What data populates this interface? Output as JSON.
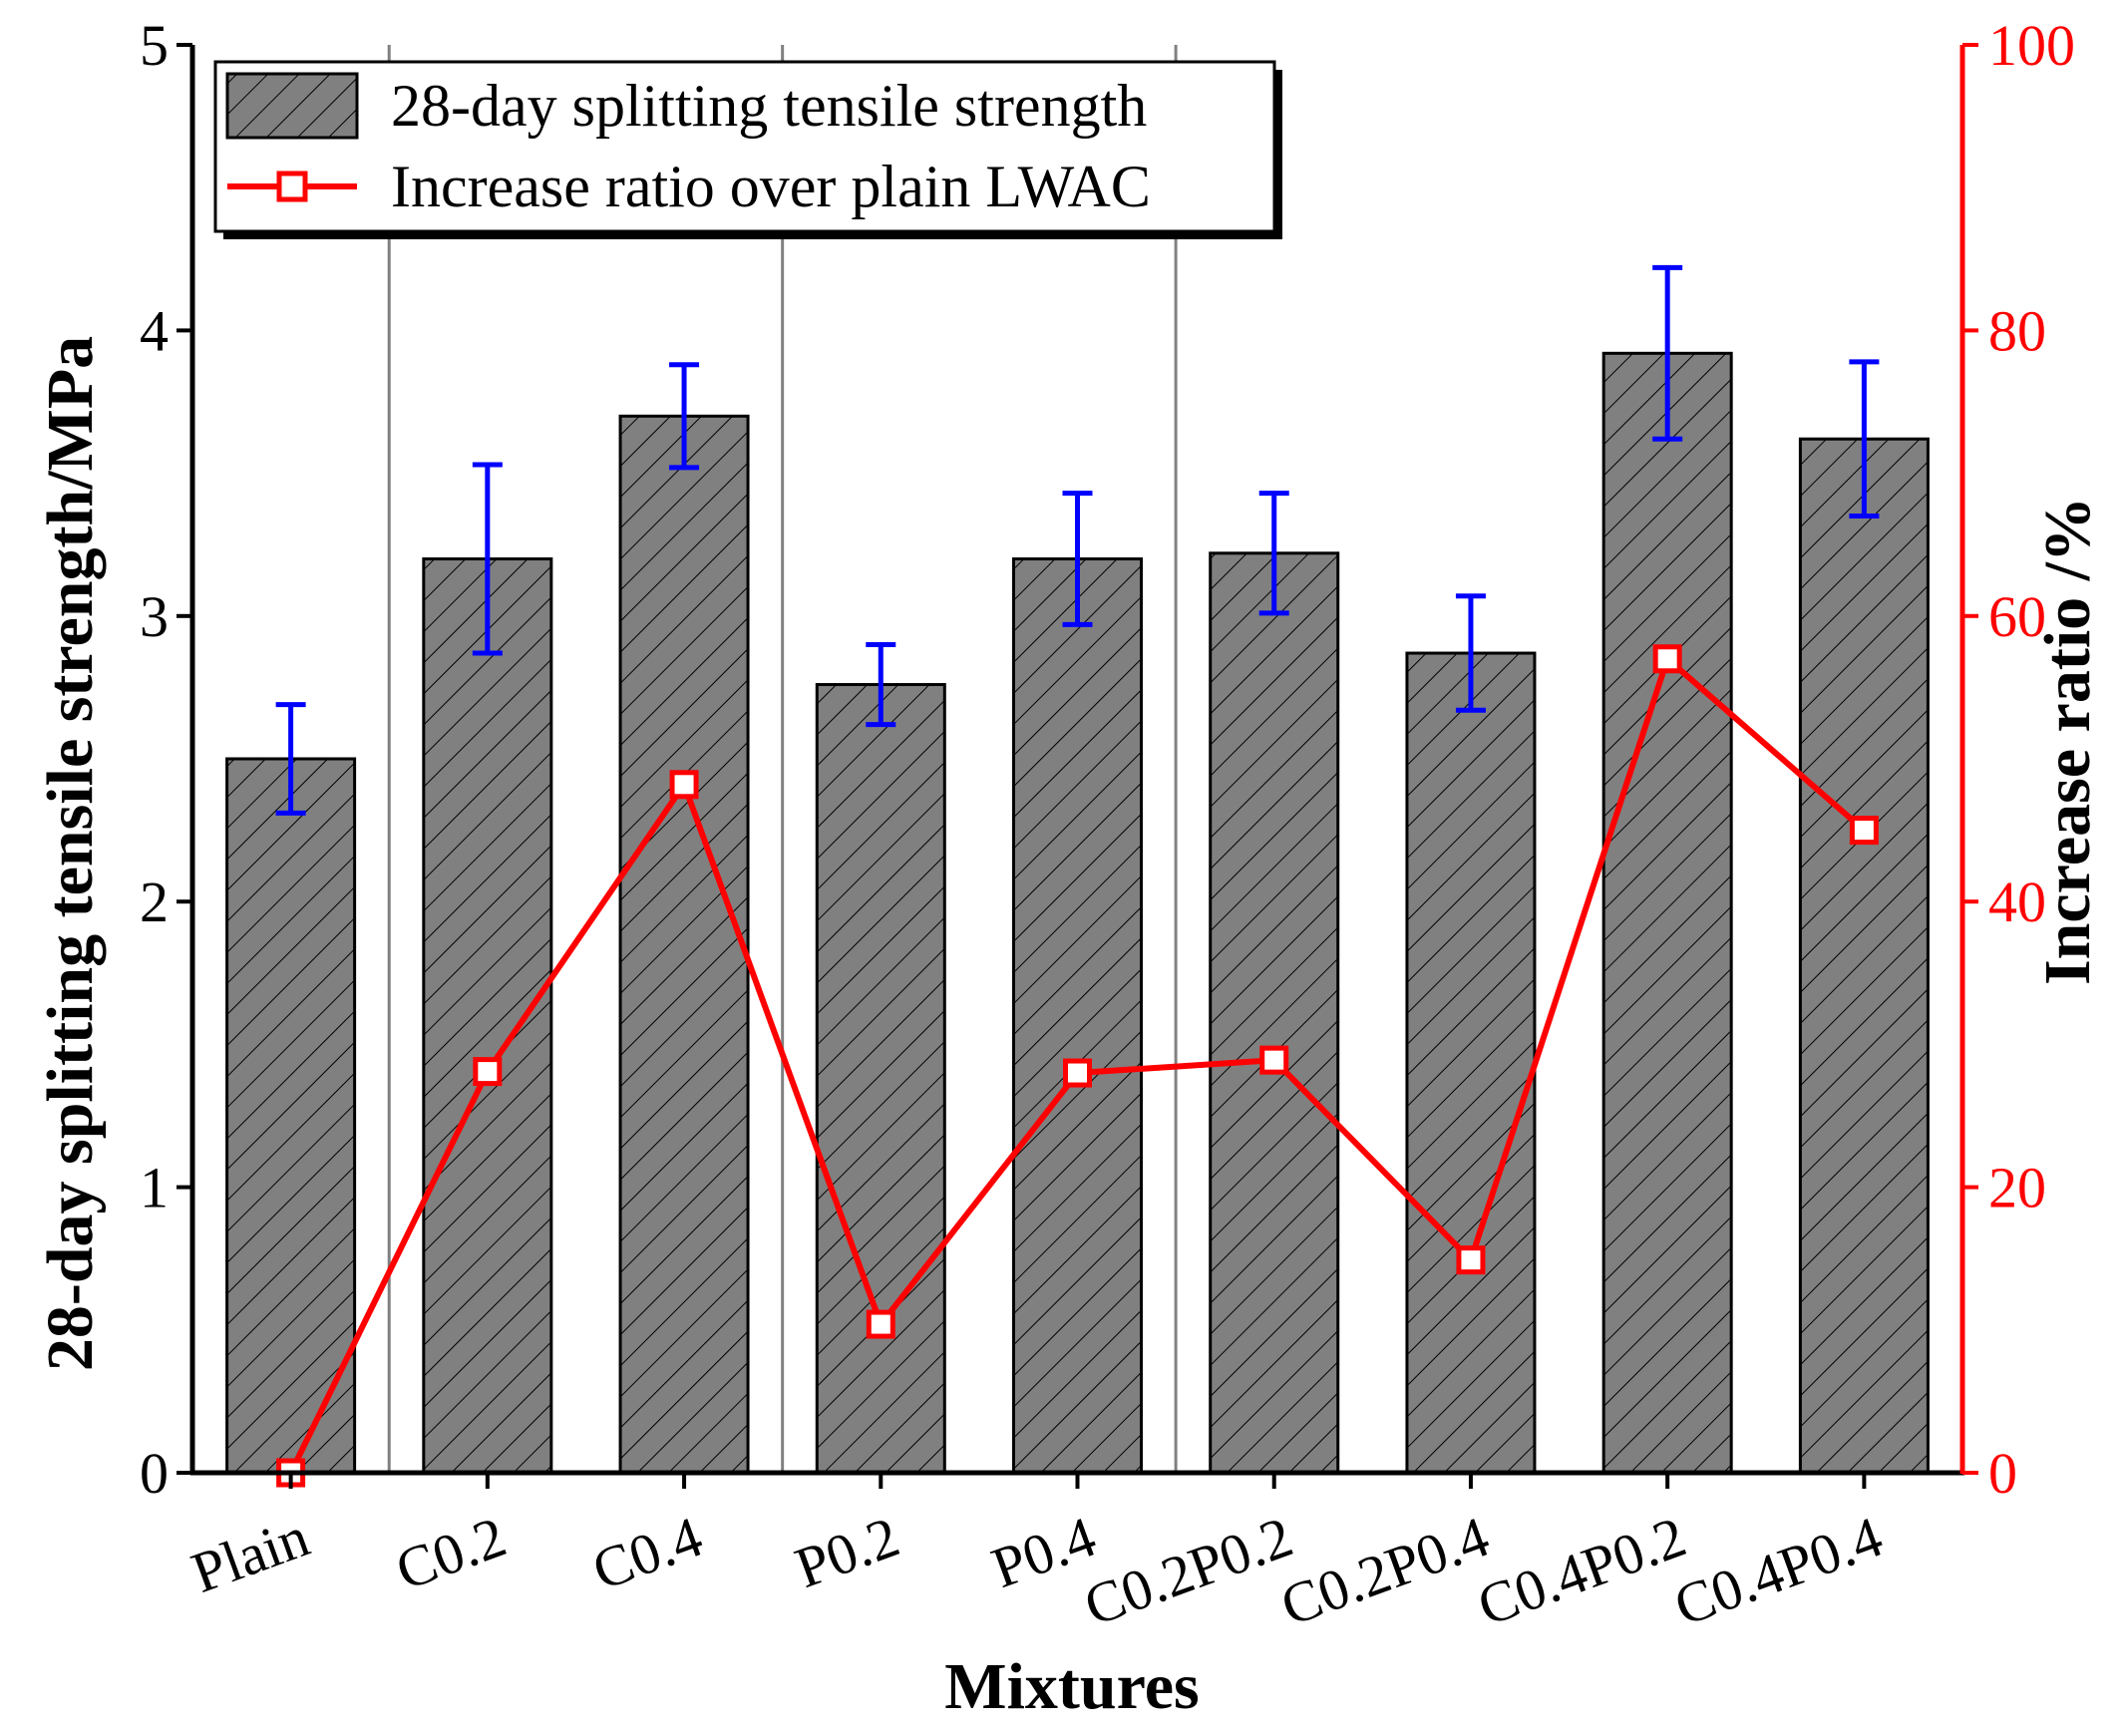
{
  "chart_data": {
    "type": "bar",
    "title": "",
    "xlabel": "Mixtures",
    "ylabel": "28-day splitting tensile strength/MPa",
    "y2label": "Increase ratio /%",
    "ylim": [
      0,
      5
    ],
    "y2lim": [
      0,
      100
    ],
    "yticks": [
      "0",
      "1",
      "2",
      "3",
      "4",
      "5"
    ],
    "y2ticks": [
      "0",
      "20",
      "40",
      "60",
      "80",
      "100"
    ],
    "categories": [
      "Plain",
      "C0.2",
      "C0.4",
      "P0.2",
      "P0.4",
      "C0.2P0.2",
      "C0.2P0.4",
      "C0.4P0.2",
      "C0.4P0.4"
    ],
    "group_separators_after": [
      0,
      2,
      4
    ],
    "series": [
      {
        "name": "28-day splitting tensile strength",
        "type": "bar",
        "axis": "left",
        "values": [
          2.5,
          3.2,
          3.7,
          2.76,
          3.2,
          3.22,
          2.87,
          3.92,
          3.62
        ],
        "error": [
          0.19,
          0.33,
          0.18,
          0.14,
          0.23,
          0.21,
          0.2,
          0.3,
          0.27
        ]
      },
      {
        "name": "Increase ratio over plain LWAC",
        "type": "line",
        "axis": "right",
        "values": [
          0,
          28.1,
          48.2,
          10.4,
          28.0,
          28.9,
          14.9,
          57.0,
          45.0
        ]
      }
    ],
    "legend_position": "top-left",
    "colors": {
      "bar_fill": "#808080",
      "bar_hatch": "#000000",
      "error_bar": "#0000ff",
      "line": "#ff0000",
      "right_axis": "#ff0000",
      "separator": "#808080"
    }
  }
}
